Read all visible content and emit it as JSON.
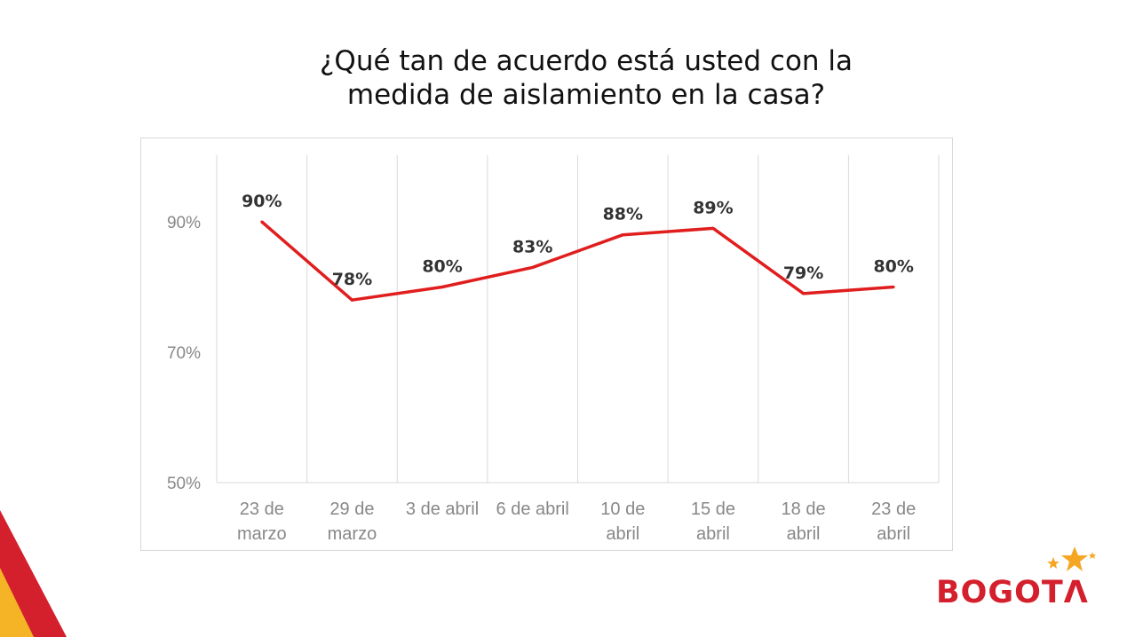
{
  "title_line1": "¿Qué tan de acuerdo está usted con la",
  "title_line2": "medida de aislamiento en la casa?",
  "logo": {
    "text": "BOGOTΛ",
    "star_color": "#f5a623",
    "brand_color": "#d4202d"
  },
  "chart_data": {
    "type": "line",
    "categories": [
      [
        "23 de",
        "marzo"
      ],
      [
        "29 de",
        "marzo"
      ],
      [
        "3 de abril"
      ],
      [
        "6 de abril"
      ],
      [
        "10 de",
        "abril"
      ],
      [
        "15 de",
        "abril"
      ],
      [
        "18 de",
        "abril"
      ],
      [
        "23 de",
        "abril"
      ]
    ],
    "series": [
      {
        "values": [
          90,
          78,
          80,
          83,
          88,
          89,
          79,
          80
        ],
        "color": "#e01e1e"
      }
    ],
    "data_labels": [
      "90%",
      "78%",
      "80%",
      "83%",
      "88%",
      "89%",
      "79%",
      "80%"
    ],
    "y_ticks": [
      {
        "value": 90,
        "label": "90%"
      },
      {
        "value": 70,
        "label": "70%"
      },
      {
        "value": 50,
        "label": "50%"
      }
    ],
    "ylim": [
      50,
      100
    ],
    "vertical_gridlines": true,
    "horizontal_gridlines": false
  }
}
